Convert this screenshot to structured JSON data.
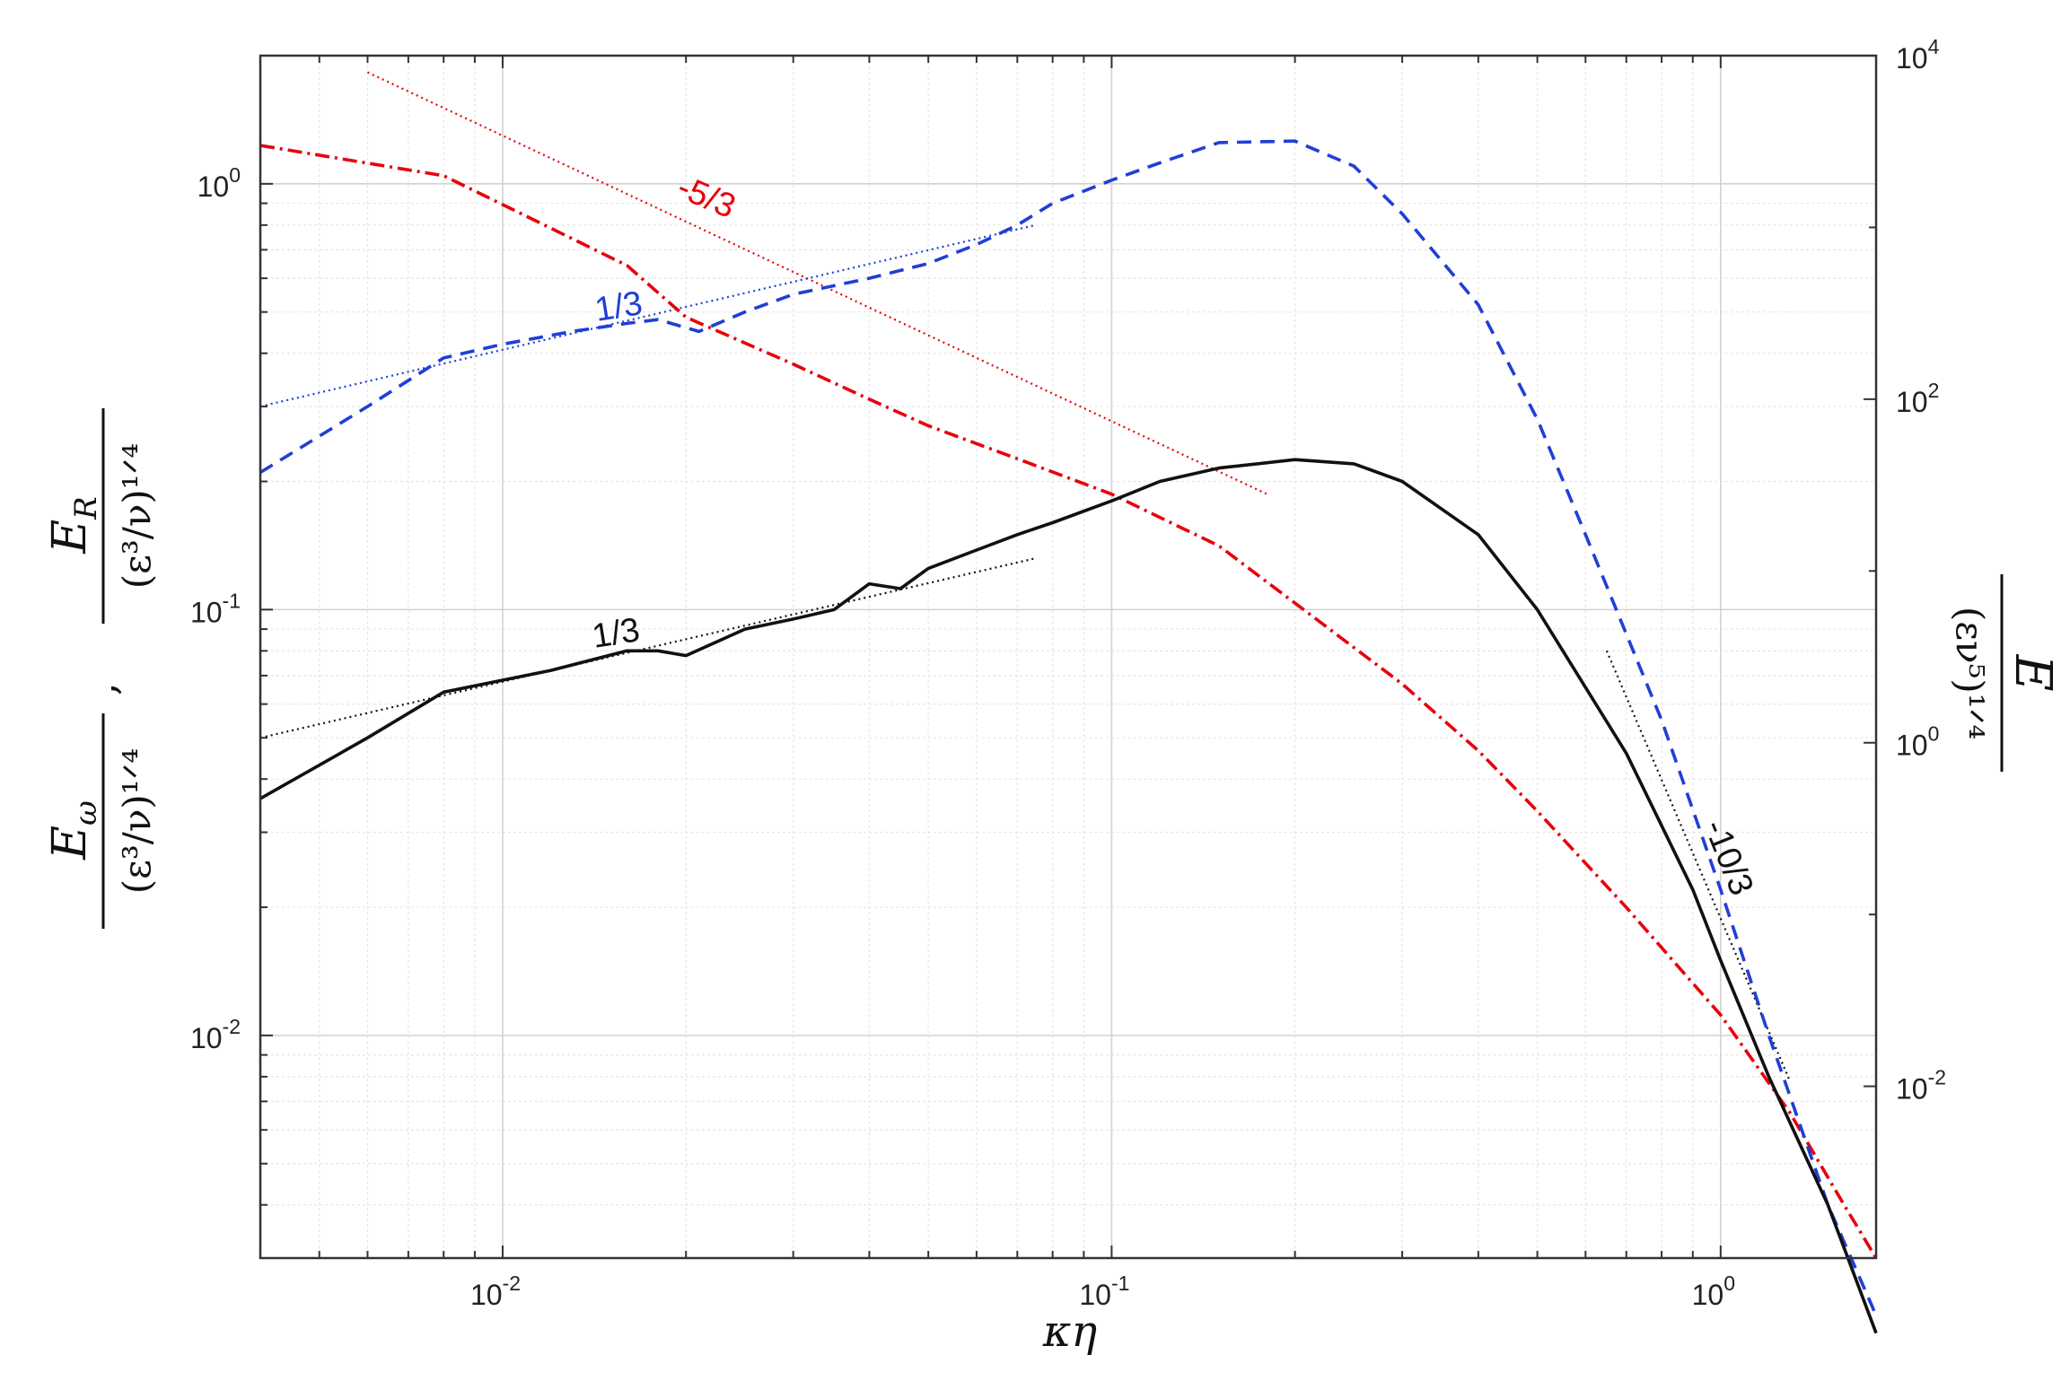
{
  "chart_data": {
    "type": "line",
    "xlabel": "κη",
    "ylabel_left": {
      "omega": {
        "numerator": "E",
        "numerator_sub": "ω",
        "denominator": "(ε³/ν)¹ᐟ⁴",
        "separator": ","
      },
      "R": {
        "numerator": "E",
        "numerator_sub": "R",
        "denominator": "(ε³/ν)¹ᐟ⁴"
      }
    },
    "ylabel_right": {
      "numerator": "E",
      "denominator": "(εν⁵)¹ᐟ⁴"
    },
    "x_scale": "log",
    "y_scale": "log",
    "xlim": [
      0.004,
      1.8
    ],
    "ylim_left": [
      0.003,
      2.0
    ],
    "ylim_right": [
      0.001,
      10000
    ],
    "grid": true,
    "x_ticks": [
      {
        "value": 0.01,
        "base": "10",
        "exp": "-2"
      },
      {
        "value": 0.1,
        "base": "10",
        "exp": "-1"
      },
      {
        "value": 1,
        "base": "10",
        "exp": "0"
      }
    ],
    "y_ticks_left": [
      {
        "value": 1,
        "base": "10",
        "exp": "0"
      },
      {
        "value": 0.1,
        "base": "10",
        "exp": "-1"
      },
      {
        "value": 0.01,
        "base": "10",
        "exp": "-2"
      }
    ],
    "y_ticks_right": [
      {
        "value": 10000,
        "base": "10",
        "exp": "4"
      },
      {
        "value": 100,
        "base": "10",
        "exp": "2"
      },
      {
        "value": 1,
        "base": "10",
        "exp": "0"
      },
      {
        "value": 0.01,
        "base": "10",
        "exp": "-2"
      }
    ],
    "series": [
      {
        "color": "#e8000b",
        "style": "dash-dot",
        "axis": "right",
        "x": [
          0.004,
          0.008,
          0.016,
          0.02,
          0.03,
          0.04,
          0.05,
          0.07,
          0.1,
          0.15,
          0.2,
          0.3,
          0.4,
          0.5,
          0.7,
          1.0,
          1.3,
          1.6,
          1.8
        ],
        "y": [
          3000,
          2000,
          600,
          300,
          160,
          100,
          70,
          45,
          28,
          14,
          6.5,
          2.2,
          0.9,
          0.4,
          0.11,
          0.026,
          0.007,
          0.002,
          0.001
        ]
      },
      {
        "color": "#1f3fd6",
        "style": "dashed",
        "axis": "left",
        "x": [
          0.004,
          0.006,
          0.008,
          0.01,
          0.013,
          0.016,
          0.018,
          0.021,
          0.025,
          0.03,
          0.04,
          0.05,
          0.06,
          0.07,
          0.08,
          0.1,
          0.12,
          0.15,
          0.2,
          0.25,
          0.3,
          0.4,
          0.5,
          0.6,
          0.8,
          1.0,
          1.2,
          1.5,
          1.8
        ],
        "y": [
          0.21,
          0.3,
          0.39,
          0.42,
          0.45,
          0.47,
          0.48,
          0.45,
          0.5,
          0.55,
          0.6,
          0.65,
          0.72,
          0.8,
          0.9,
          1.02,
          1.12,
          1.25,
          1.26,
          1.1,
          0.85,
          0.52,
          0.28,
          0.15,
          0.055,
          0.022,
          0.01,
          0.004,
          0.0022
        ]
      },
      {
        "color": "#111111",
        "style": "solid",
        "axis": "left",
        "x": [
          0.004,
          0.006,
          0.008,
          0.012,
          0.016,
          0.018,
          0.02,
          0.025,
          0.03,
          0.035,
          0.04,
          0.045,
          0.05,
          0.06,
          0.07,
          0.08,
          0.1,
          0.12,
          0.15,
          0.2,
          0.25,
          0.3,
          0.4,
          0.5,
          0.7,
          0.9,
          1.0,
          1.2,
          1.5,
          1.8
        ],
        "y": [
          0.036,
          0.05,
          0.064,
          0.072,
          0.08,
          0.08,
          0.078,
          0.09,
          0.095,
          0.1,
          0.115,
          0.112,
          0.125,
          0.138,
          0.15,
          0.16,
          0.18,
          0.2,
          0.215,
          0.225,
          0.22,
          0.2,
          0.15,
          0.1,
          0.046,
          0.022,
          0.015,
          0.008,
          0.004,
          0.002
        ]
      }
    ],
    "reference_lines": [
      {
        "color": "#e8000b",
        "axis": "right",
        "label": "-5/3",
        "x": [
          0.006,
          0.18
        ],
        "y": [
          8000,
          28
        ]
      },
      {
        "color": "#1f3fd6",
        "axis": "left",
        "label": "1/3",
        "x": [
          0.004,
          0.075
        ],
        "y": [
          0.3,
          0.8
        ]
      },
      {
        "color": "#111111",
        "axis": "left",
        "label": "1/3",
        "x": [
          0.004,
          0.075
        ],
        "y": [
          0.05,
          0.132
        ]
      },
      {
        "color": "#111111",
        "axis": "left",
        "label": "-10/3",
        "x": [
          0.65,
          1.3
        ],
        "y": [
          0.08,
          0.0078
        ]
      }
    ]
  }
}
